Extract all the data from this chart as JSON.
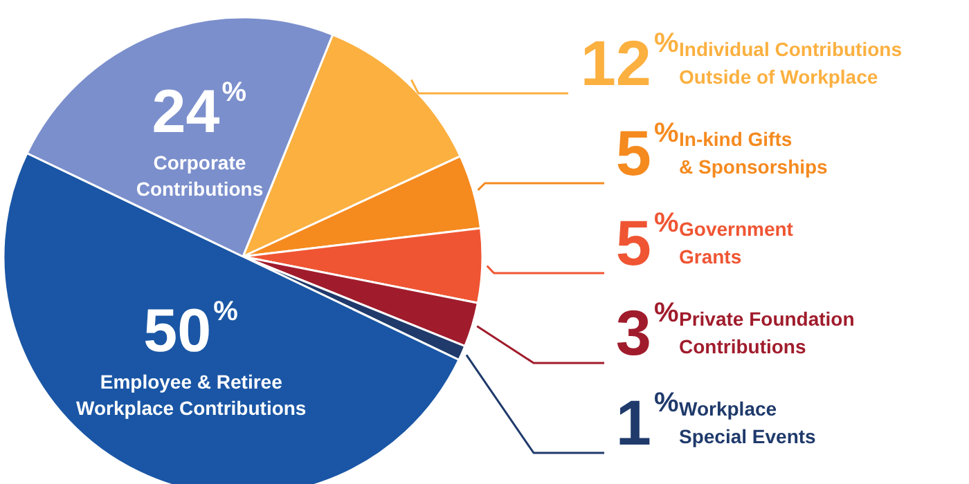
{
  "chart_data": {
    "type": "pie",
    "categories": [
      "Individual Contributions\nOutside of Workplace",
      "In-kind Gifts\n& Sponsorships",
      "Government\nGrants",
      "Private Foundation\nContributions",
      "Workplace\nSpecial Events",
      "Employee & Retiree\nWorkplace Contributions",
      "Corporate\nContributions"
    ],
    "values": [
      12,
      5,
      5,
      3,
      1,
      50,
      24
    ],
    "value_labels": [
      "12%",
      "5%",
      "5%",
      "3%",
      "1%",
      "50%",
      "24%"
    ],
    "colors": [
      "#fbb040",
      "#f58a1f",
      "#ef5533",
      "#a01c2c",
      "#1f3a6b",
      "#1a56a5",
      "#7b8fcc"
    ]
  }
}
